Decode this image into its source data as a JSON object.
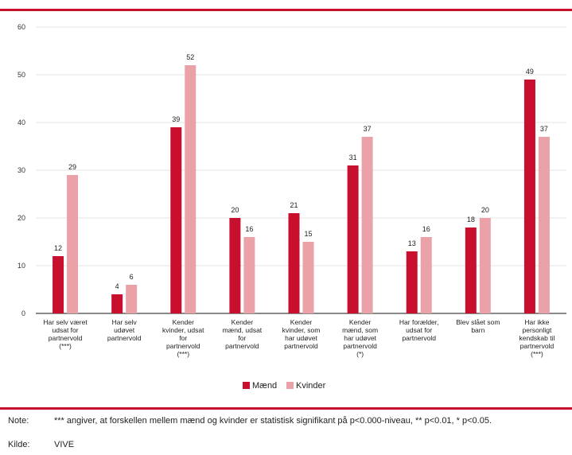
{
  "chart_data": {
    "type": "bar",
    "categories": [
      [
        "Har selv været",
        "udsat for",
        "partnervold",
        "(***)"
      ],
      [
        "Har selv",
        "udøvet",
        "partnervold"
      ],
      [
        "Kender",
        "kvinder, udsat",
        "for",
        "partnervold",
        "(***)"
      ],
      [
        "Kender",
        "mænd, udsat",
        "for",
        "partnervold"
      ],
      [
        "Kender",
        "kvinder, som",
        "har udøvet",
        "partnervold"
      ],
      [
        "Kender",
        "mænd, som",
        "har udøvet",
        "partnervold",
        "(*)"
      ],
      [
        "Har forælder,",
        "udsat for",
        "partnervold"
      ],
      [
        "Blev slået som",
        "barn"
      ],
      [
        "Har ikke",
        "personligt",
        "kendskab til",
        "partnervold",
        "(***)"
      ]
    ],
    "series": [
      {
        "name": "Mænd",
        "color": "#c8102e",
        "values": [
          12,
          4,
          39,
          20,
          21,
          31,
          13,
          18,
          49
        ]
      },
      {
        "name": "Kvinder",
        "color": "#eaa1a8",
        "values": [
          29,
          6,
          52,
          16,
          15,
          37,
          16,
          20,
          37
        ]
      }
    ],
    "ylim": [
      0,
      60
    ],
    "yticks": [
      0,
      10,
      20,
      30,
      40,
      50,
      60
    ],
    "grid": true,
    "legend": "bottom-center"
  },
  "note": {
    "label": "Note:",
    "text": "*** angiver, at forskellen mellem mænd og kvinder er statistisk signifikant på p<0.000-niveau, ** p<0.01, * p<0.05."
  },
  "source": {
    "label": "Kilde:",
    "text": "VIVE"
  }
}
